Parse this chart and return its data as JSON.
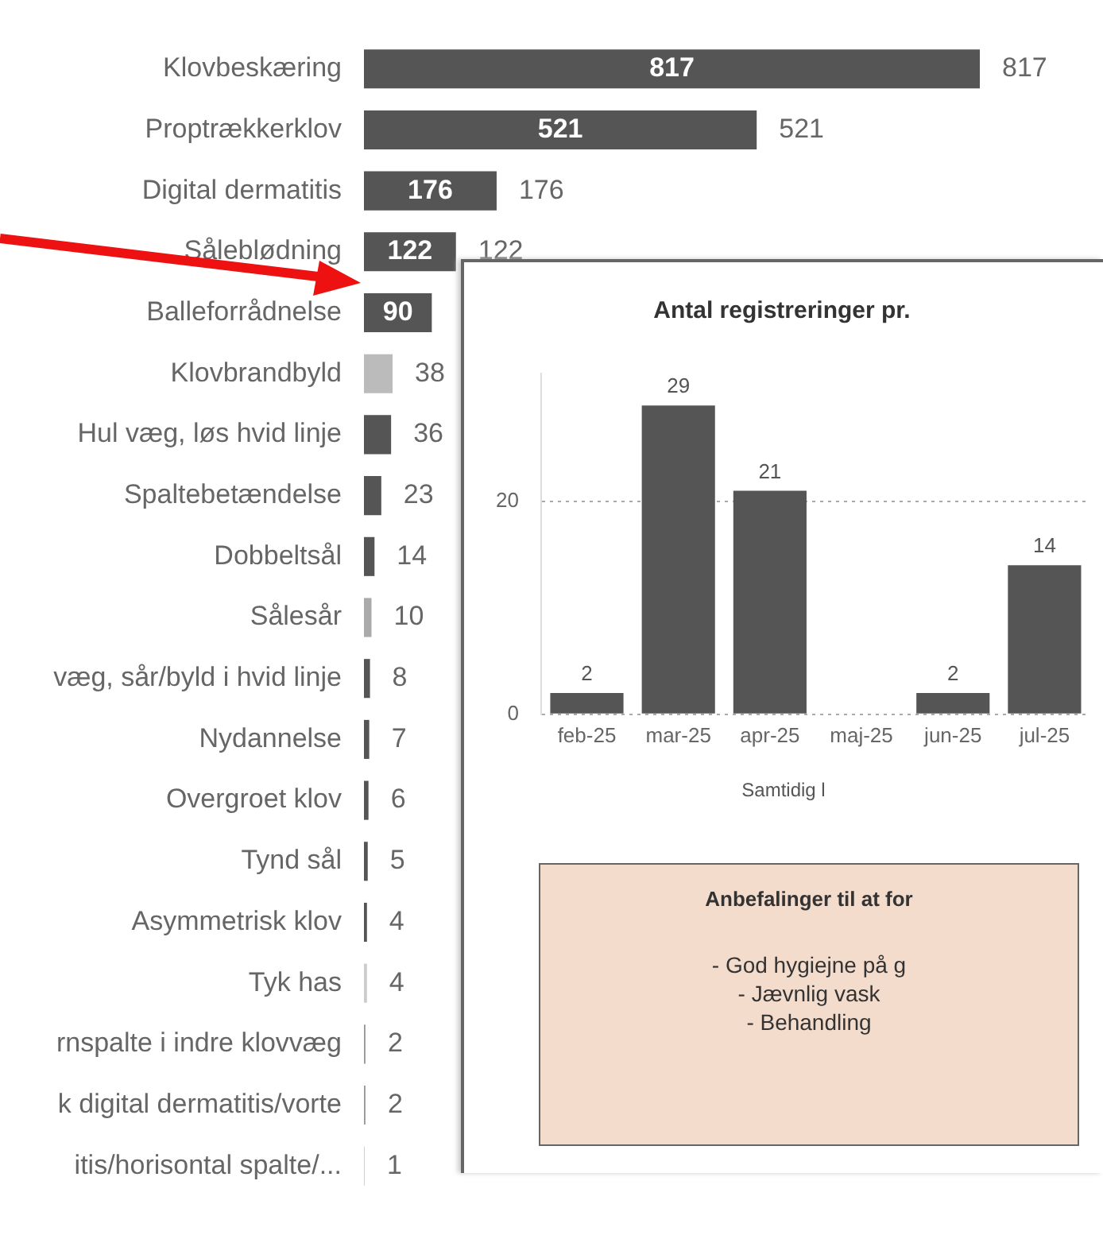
{
  "chart_data": [
    {
      "type": "bar",
      "orientation": "horizontal",
      "data_labels": true,
      "categories": [
        "Klovbeskæring",
        "Proptrækkerklov",
        "Digital dermatitis",
        "Såleblødning",
        "Balleforrådnelse",
        "Klovbrandbyld",
        "Hul væg, løs hvid linje",
        "Spaltebetændelse",
        "Dobbeltsål",
        "Sålesår",
        "væg, sår/byld i hvid linje",
        "Nydannelse",
        "Overgroet klov",
        "Tynd sål",
        "Asymmetrisk klov",
        "Tyk has",
        "rnspalte i indre klovvæg",
        "k digital dermatitis/vorte",
        "itis/horisontal spalte/..."
      ],
      "values": [
        817,
        521,
        176,
        122,
        90,
        38,
        36,
        23,
        14,
        10,
        8,
        7,
        6,
        5,
        4,
        4,
        2,
        2,
        1
      ],
      "value_labels": [
        "817",
        "521",
        "176",
        "122",
        null,
        "38",
        "36",
        "23",
        "14",
        "10",
        "8",
        "7",
        "6",
        "5",
        "4",
        "4",
        "2",
        "2",
        "1"
      ],
      "annotations": [
        {
          "text": "817",
          "x": 408.5,
          "y": "Klovbeskæring"
        },
        {
          "text": "521",
          "x": 260.5,
          "y": "Proptrækkerklov"
        },
        {
          "text": "176",
          "x": 88,
          "y": "Digital dermatitis"
        },
        {
          "text": "122",
          "x": 61,
          "y": "Såleblødning"
        },
        {
          "text": "90",
          "x": 45,
          "y": "Balleforrådnelse"
        }
      ],
      "colors": [
        "#555555",
        "#555555",
        "#555555",
        "#555555",
        "#555555",
        "#bbbbbb",
        "#555555",
        "#555555",
        "#555555",
        "#aaaaaa",
        "#555555",
        "#555555",
        "#555555",
        "#555555",
        "#555555",
        "#cccccc",
        "#999999",
        "#999999",
        "#cccccc"
      ]
    },
    {
      "type": "bar",
      "title": "Antal registreringer pr.",
      "data_labels": true,
      "grid": "y",
      "categories": [
        "feb-25",
        "mar-25",
        "apr-25",
        "maj-25",
        "jun-25",
        "jul-25"
      ],
      "values": [
        2,
        29,
        21,
        null,
        2,
        14
      ],
      "color": "#555555",
      "ylim": [
        0,
        32
      ],
      "yticks": [
        0,
        20
      ],
      "annotations": [
        "Samtidig l",
        "Anbefalinger til at for",
        "- God hygiejne på g",
        "- Jævnlig vask",
        "- Behandling"
      ]
    }
  ]
}
